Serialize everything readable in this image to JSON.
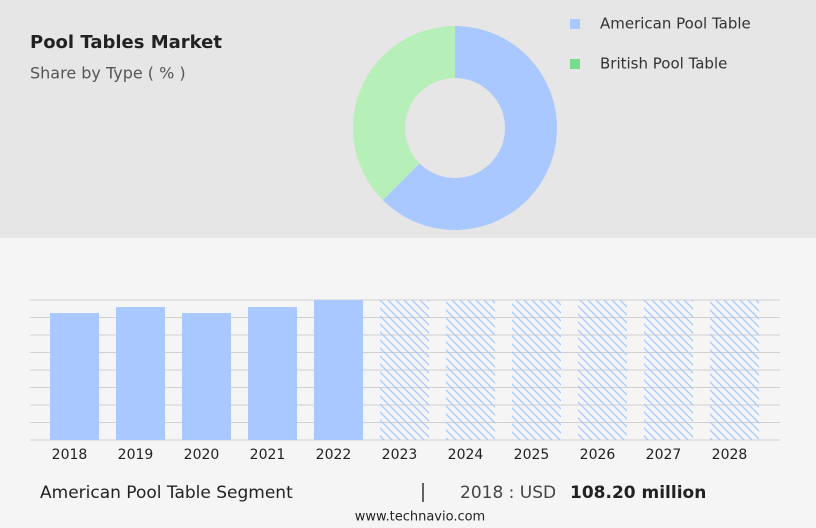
{
  "chart_data": [
    {
      "type": "pie",
      "title": "Pool Tables Market",
      "subtitle": "Share by Type ( % )",
      "donut": true,
      "categories": [
        "American Pool Table",
        "British Pool Table"
      ],
      "values": [
        62.5,
        37.5
      ],
      "colors": [
        "#a8c8ff",
        "#b6efb8"
      ],
      "legend_colors": [
        "#a8c8ff",
        "#77dd8c"
      ]
    },
    {
      "type": "bar",
      "categories": [
        "2018",
        "2019",
        "2020",
        "2021",
        "2022",
        "2023",
        "2024",
        "2025",
        "2026",
        "2027",
        "2028"
      ],
      "values": [
        108.2,
        113.3,
        108.2,
        113.3,
        119.3,
        null,
        null,
        null,
        null,
        null,
        null
      ],
      "color": "#a8c8ff",
      "ylim": [
        0,
        119.3
      ],
      "grid": true
    }
  ],
  "footer": {
    "segment": "American Pool Table Segment",
    "prefix": "2018 : USD",
    "value": "108.20 million",
    "source": "www.technavio.com"
  }
}
